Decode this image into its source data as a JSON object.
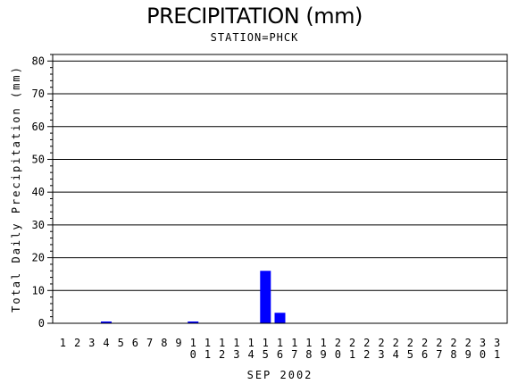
{
  "chart_data": {
    "type": "bar",
    "title": "PRECIPITATION (mm)",
    "subtitle": "STATION=PHCK",
    "xlabel": "SEP 2002",
    "ylabel": "Total Daily Precipitation (mm)",
    "ylim": [
      0,
      82
    ],
    "yticks": [
      0,
      10,
      20,
      30,
      40,
      50,
      60,
      70,
      80
    ],
    "grid": true,
    "bar_color": "#0000ff",
    "categories": [
      "1",
      "2",
      "3",
      "4",
      "5",
      "6",
      "7",
      "8",
      "9",
      "10",
      "11",
      "12",
      "13",
      "14",
      "15",
      "16",
      "17",
      "18",
      "19",
      "20",
      "21",
      "22",
      "23",
      "24",
      "25",
      "26",
      "27",
      "28",
      "29",
      "30",
      "31"
    ],
    "values": [
      0,
      0,
      0,
      0.3,
      0,
      0,
      0,
      0,
      0,
      0.3,
      0,
      0,
      0,
      0,
      16,
      3.2,
      0,
      0,
      0,
      0,
      0,
      0,
      0,
      0,
      0,
      0,
      0,
      0,
      0,
      0,
      0
    ]
  }
}
